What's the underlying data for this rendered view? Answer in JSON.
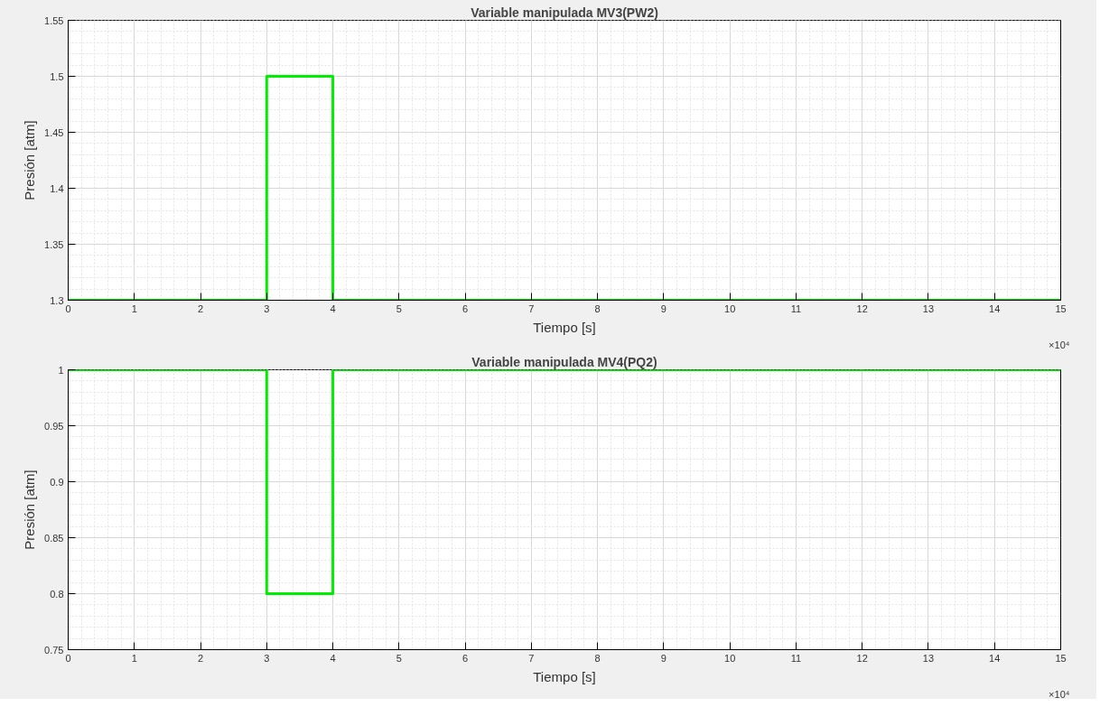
{
  "chart_data": [
    {
      "type": "step",
      "title": "Variable manipulada MV3(PW2)",
      "xlabel": "Tiempo [s]",
      "ylabel": "Presión [atm]",
      "x": [
        0,
        3,
        4,
        15
      ],
      "values": [
        1.3,
        1.5,
        1.3,
        1.3
      ],
      "color": "#00ee00",
      "xlim": [
        0,
        15
      ],
      "ylim": [
        1.3,
        1.55
      ],
      "xticks": [
        0,
        1,
        2,
        3,
        4,
        5,
        6,
        7,
        8,
        9,
        10,
        11,
        12,
        13,
        14,
        15
      ],
      "yticks": [
        1.3,
        1.35,
        1.4,
        1.45,
        1.5,
        1.55
      ],
      "grid": true,
      "annotations": [
        "×10⁴"
      ]
    },
    {
      "type": "step",
      "title": "Variable manipulada MV4(PQ2)",
      "xlabel": "Tiempo [s]",
      "ylabel": "Presión [atm]",
      "x": [
        0,
        3,
        4,
        15
      ],
      "values": [
        1,
        0.8,
        1,
        1
      ],
      "color": "#00ee00",
      "xlim": [
        0,
        15
      ],
      "ylim": [
        0.75,
        1
      ],
      "xticks": [
        0,
        1,
        2,
        3,
        4,
        5,
        6,
        7,
        8,
        9,
        10,
        11,
        12,
        13,
        14,
        15
      ],
      "yticks": [
        0.75,
        0.8,
        0.85,
        0.9,
        0.95,
        1
      ],
      "grid": true,
      "annotations": [
        "×10⁴"
      ]
    }
  ]
}
